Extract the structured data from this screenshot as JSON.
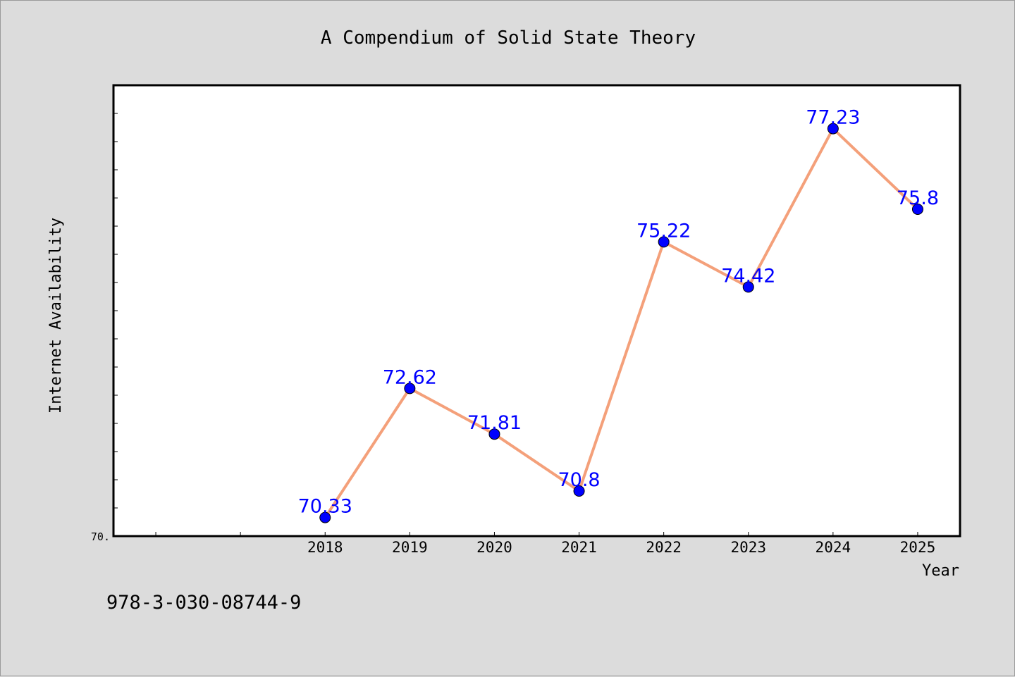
{
  "chart_data": {
    "type": "line",
    "title": "A Compendium of Solid State Theory",
    "xlabel": "Year",
    "ylabel": "Internet Availability",
    "x": [
      "2018",
      "2019",
      "2020",
      "2021",
      "2022",
      "2023",
      "2024",
      "2025"
    ],
    "series": [
      {
        "values": [
          70.33,
          72.62,
          71.81,
          70.8,
          75.22,
          74.42,
          77.23,
          75.8
        ],
        "data_labels": [
          "70.33",
          "72.62",
          "71.81",
          "70.8",
          "75.22",
          "74.42",
          "77.23",
          "75.8"
        ],
        "line_color": "#f4a07a",
        "marker_color": "#0000ff"
      }
    ],
    "xlim": [
      2015.5,
      2025.5
    ],
    "ylim": [
      70,
      78
    ],
    "y_tick_label": "70.",
    "grid": false,
    "legend": "none"
  },
  "footer": {
    "isbn": "978-3-030-08744-9"
  }
}
